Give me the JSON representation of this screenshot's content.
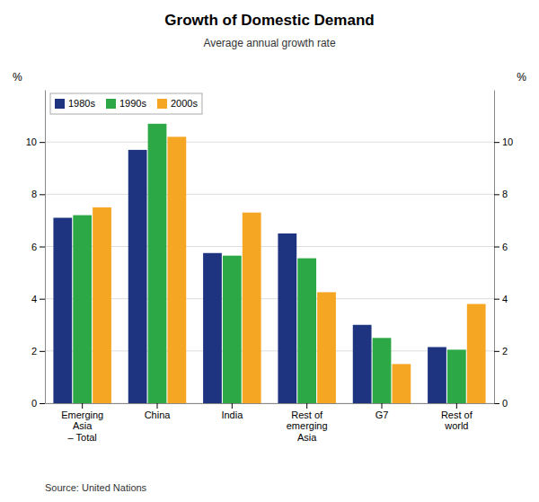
{
  "chart_data": {
    "type": "bar",
    "title": "Growth of Domestic Demand",
    "subtitle": "Average annual growth rate",
    "annotations": [
      "Source: United Nations"
    ],
    "ylabel": "%",
    "y2label": "%",
    "categories": [
      "Emerging\nAsia\n– Total",
      "China",
      "India",
      "Rest of\nemerging\nAsia",
      "G7",
      "Rest of\nworld"
    ],
    "series": [
      {
        "name": "1980s",
        "color": "#1f3480",
        "values": [
          7.1,
          9.7,
          5.75,
          6.5,
          3.0,
          2.15
        ]
      },
      {
        "name": "1990s",
        "color": "#2da846",
        "values": [
          7.2,
          10.7,
          5.65,
          5.55,
          2.5,
          2.05
        ]
      },
      {
        "name": "2000s",
        "color": "#f5a623",
        "values": [
          7.5,
          10.2,
          7.3,
          4.25,
          1.5,
          3.8
        ]
      }
    ],
    "ylim": [
      0,
      12
    ],
    "yticks": [
      0,
      2,
      4,
      6,
      8,
      10
    ],
    "y2lim": [
      0,
      12
    ],
    "y2ticks": [
      0,
      2,
      4,
      6,
      8,
      10
    ],
    "grid": true,
    "legend": "upper left"
  }
}
